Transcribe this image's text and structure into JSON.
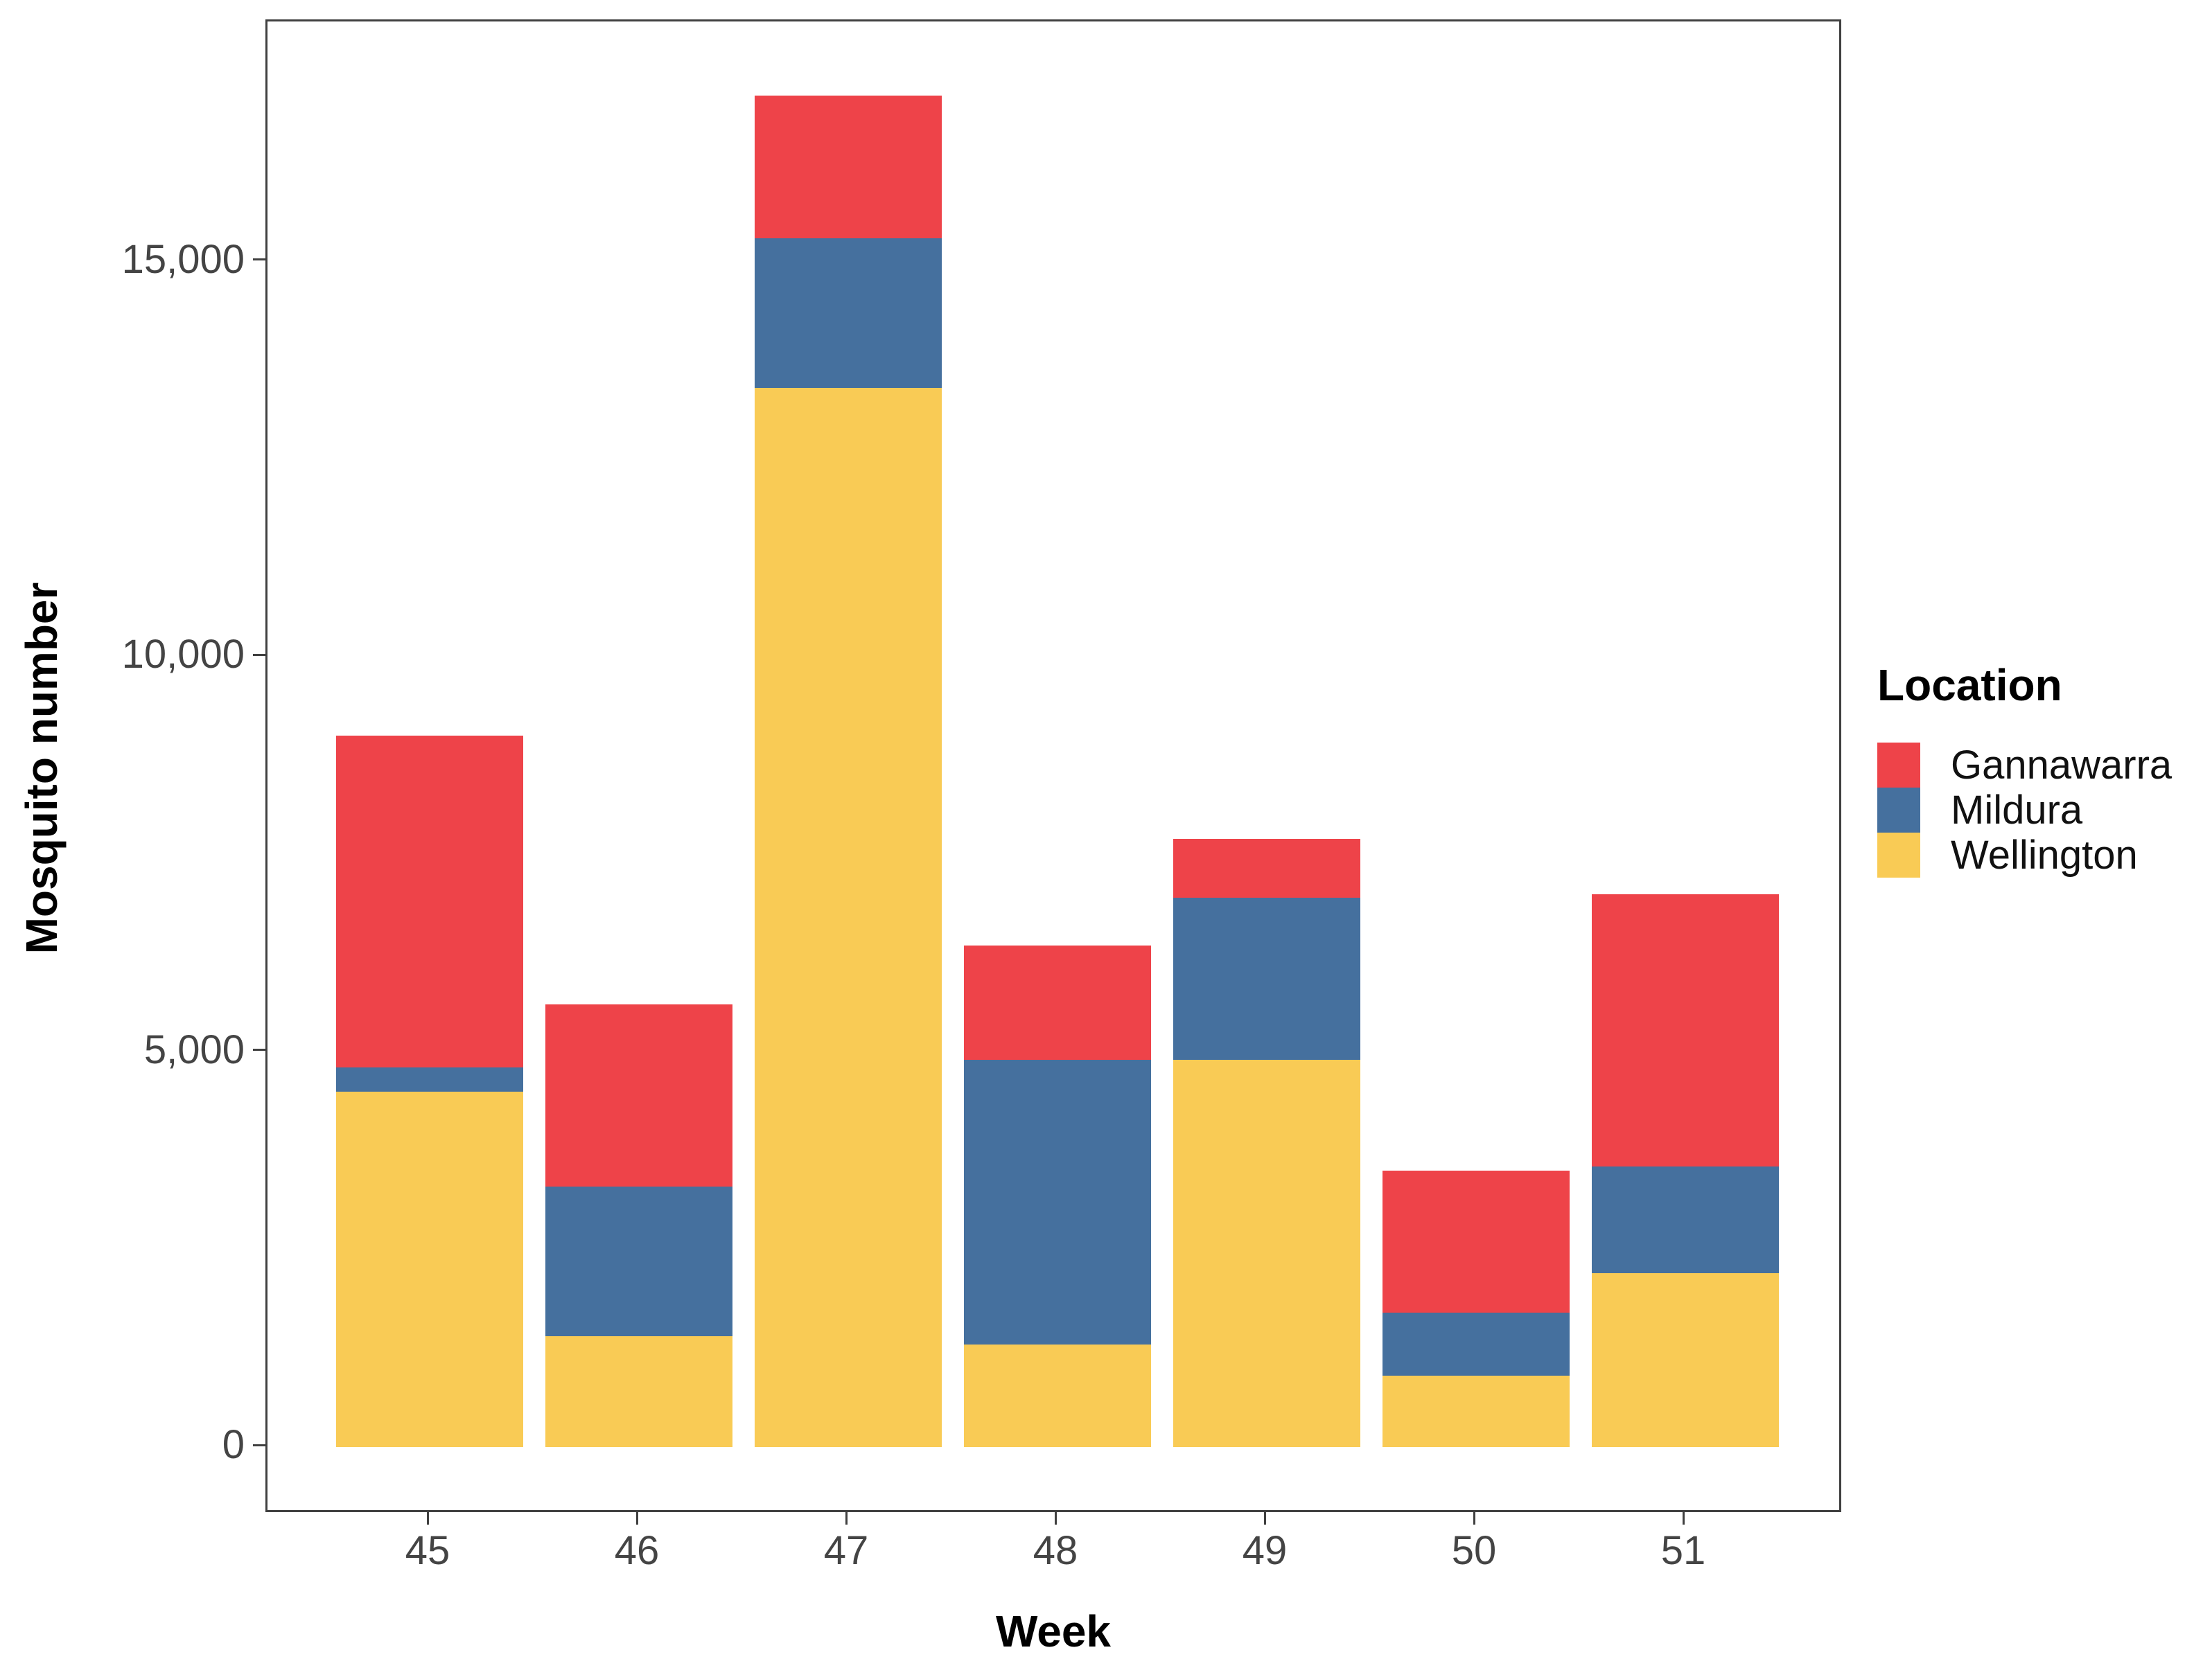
{
  "chart_data": {
    "type": "bar",
    "stacked": true,
    "title": "",
    "xlabel": "Week",
    "ylabel": "Mosquito number",
    "categories": [
      "45",
      "46",
      "47",
      "48",
      "49",
      "50",
      "51"
    ],
    "series": [
      {
        "name": "Wellington",
        "color": "#F9CB55",
        "values": [
          4500,
          1400,
          13400,
          1300,
          4900,
          900,
          2200
        ]
      },
      {
        "name": "Mildura",
        "color": "#45709E",
        "values": [
          300,
          1900,
          1900,
          3600,
          2050,
          800,
          1350
        ]
      },
      {
        "name": "Gannawarra",
        "color": "#EE4349",
        "values": [
          4200,
          2300,
          1800,
          1450,
          750,
          1800,
          3450
        ]
      }
    ],
    "stack_order_bottom_to_top": [
      "Wellington",
      "Mildura",
      "Gannawarra"
    ],
    "totals": [
      9000,
      5600,
      17100,
      6350,
      7700,
      3500,
      7000
    ],
    "y_ticks": [
      0,
      5000,
      10000,
      15000
    ],
    "y_tick_labels": [
      "0",
      "5,000",
      "10,000",
      "15,000"
    ],
    "ylim": [
      0,
      18000
    ],
    "grid": "off",
    "legend": {
      "title": "Location",
      "position": "right",
      "entries": [
        {
          "label": "Gannawarra",
          "color": "#EE4349"
        },
        {
          "label": "Mildura",
          "color": "#45709E"
        },
        {
          "label": "Wellington",
          "color": "#F9CB55"
        }
      ]
    }
  }
}
